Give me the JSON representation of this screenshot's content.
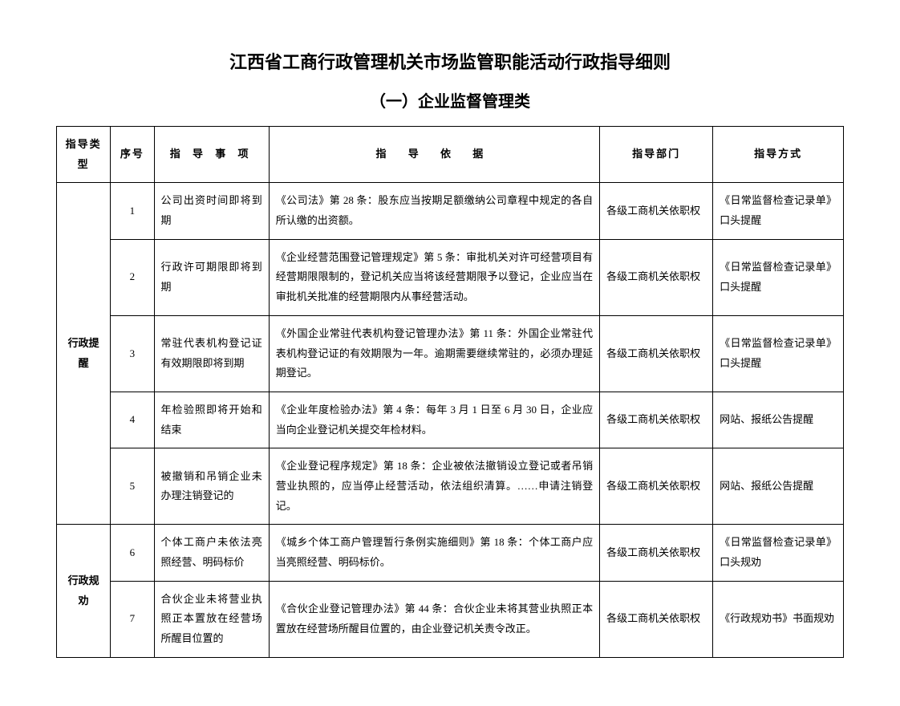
{
  "title_main": "江西省工商行政管理机关市场监管职能活动行政指导细则",
  "title_sub": "（一）企业监督管理类",
  "headers": {
    "type": "指导类型",
    "num": "序号",
    "item": "指 导 事 项",
    "basis": "指   导   依   据",
    "dept": "指导部门",
    "method": "指导方式"
  },
  "groups": [
    {
      "type_label": "行政提醒",
      "rows": [
        {
          "num": "1",
          "item": "公司出资时间即将到期",
          "basis": "《公司法》第 28 条：股东应当按期足额缴纳公司章程中规定的各自所认缴的出资额。",
          "dept": "各级工商机关依职权",
          "method": "《日常监督检查记录单》口头提醒"
        },
        {
          "num": "2",
          "item": "行政许可期限即将到期",
          "basis": "《企业经营范围登记管理规定》第 5 条：审批机关对许可经营项目有经营期限限制的，登记机关应当将该经营期限予以登记，企业应当在审批机关批准的经营期限内从事经营活动。",
          "dept": "各级工商机关依职权",
          "method": "《日常监督检查记录单》口头提醒"
        },
        {
          "num": "3",
          "item": "常驻代表机构登记证有效期限即将到期",
          "basis": "《外国企业常驻代表机构登记管理办法》第 11 条：外国企业常驻代表机构登记证的有效期限为一年。逾期需要继续常驻的，必须办理延期登记。",
          "dept": "各级工商机关依职权",
          "method": "《日常监督检查记录单》口头提醒"
        },
        {
          "num": "4",
          "item": "年检验照即将开始和结束",
          "basis": "《企业年度检验办法》第 4 条：每年 3 月 1 日至 6 月 30 日，企业应当向企业登记机关提交年检材料。",
          "dept": "各级工商机关依职权",
          "method": "网站、报纸公告提醒"
        },
        {
          "num": "5",
          "item": "被撤销和吊销企业未办理注销登记的",
          "basis": "《企业登记程序规定》第 18 条：企业被依法撤销设立登记或者吊销营业执照的，应当停止经营活动，依法组织清算。……申请注销登记。",
          "dept": "各级工商机关依职权",
          "method": "网站、报纸公告提醒"
        }
      ]
    },
    {
      "type_label": "行政规劝",
      "rows": [
        {
          "num": "6",
          "item": "个体工商户未依法亮照经营、明码标价",
          "basis": "《城乡个体工商户管理暂行条例实施细则》第 18 条：个体工商户应当亮照经营、明码标价。",
          "dept": "各级工商机关依职权",
          "method": "《日常监督检查记录单》口头规劝"
        },
        {
          "num": "7",
          "item": "合伙企业未将营业执照正本置放在经营场所醒目位置的",
          "basis": "《合伙企业登记管理办法》第 44 条：合伙企业未将其营业执照正本置放在经营场所醒目位置的，由企业登记机关责令改正。",
          "dept": "各级工商机关依职权",
          "method": "《行政规劝书》书面规劝"
        }
      ]
    }
  ]
}
